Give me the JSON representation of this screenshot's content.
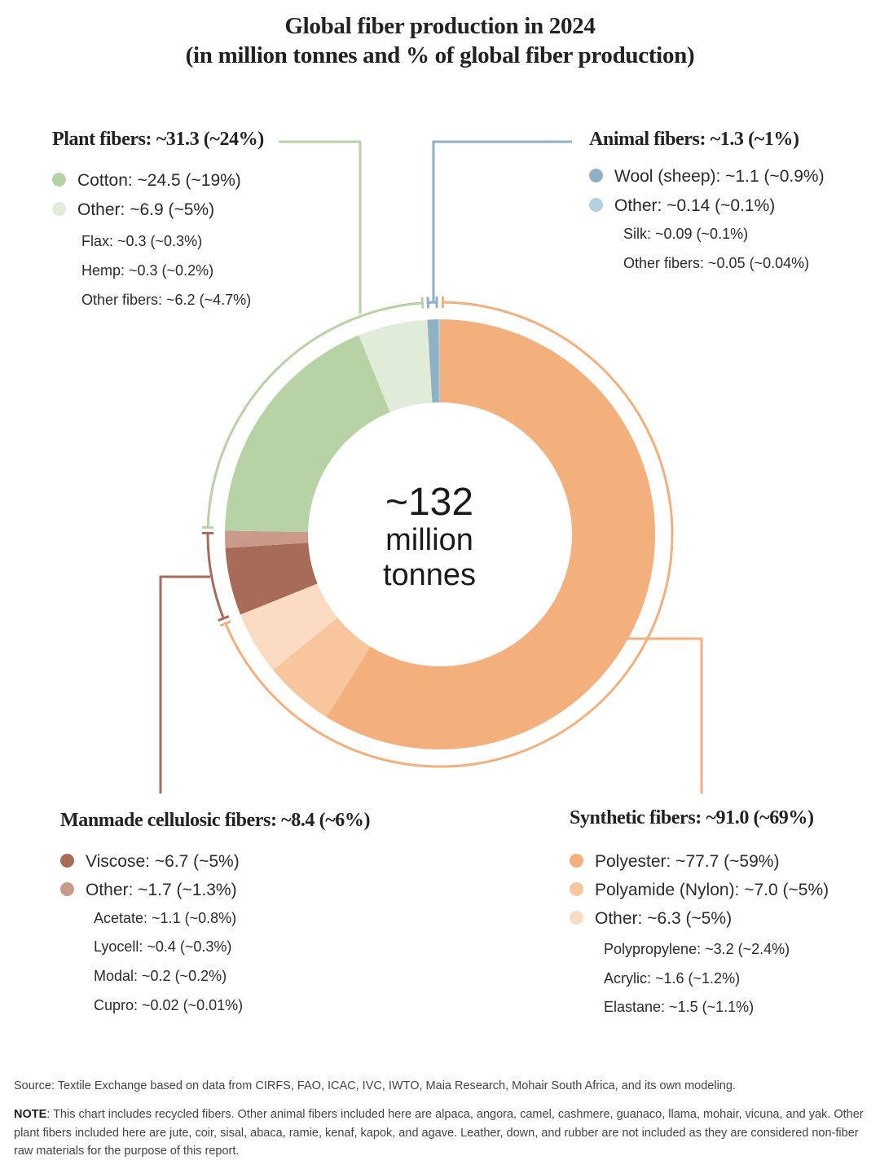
{
  "title": {
    "line1": "Global fiber production in 2024",
    "line2": "(in million tonnes and % of global fiber production)"
  },
  "center": {
    "value": "~132",
    "unit_line1": "million",
    "unit_line2": "tonnes"
  },
  "groups": {
    "plant": {
      "title": "Plant fibers: ~31.3 (~24%)",
      "color": "#b7d3a5",
      "items": [
        {
          "label": "Cotton: ~24.5 (~19%)",
          "color": "#b7d3a5"
        },
        {
          "label": "Other: ~6.9 (~5%)",
          "color": "#e1ecd8"
        }
      ],
      "subitems": [
        "Flax:  ~0.3 (~0.3%)",
        "Hemp: ~0.3 (~0.2%)",
        "Other fibers: ~6.2 (~4.7%)"
      ]
    },
    "animal": {
      "title": "Animal fibers: ~1.3 (~1%)",
      "color": "#8fb1c4",
      "items": [
        {
          "label": "Wool (sheep): ~1.1 (~0.9%)",
          "color": "#8fb1c4"
        },
        {
          "label": "Other: ~0.14 (~0.1%)",
          "color": "#b4d0dc"
        }
      ],
      "subitems": [
        "Silk: ~0.09 (~0.1%)",
        "Other fibers: ~0.05 (~0.04%)"
      ]
    },
    "cellulosic": {
      "title": "Manmade cellulosic fibers: ~8.4 (~6%)",
      "color": "#a86b58",
      "items": [
        {
          "label": "Viscose: ~6.7 (~5%)",
          "color": "#a86b58"
        },
        {
          "label": "Other: ~1.7 (~1.3%)",
          "color": "#c99a8a"
        }
      ],
      "subitems": [
        "Acetate: ~1.1 (~0.8%)",
        "Lyocell: ~0.4 (~0.3%)",
        "Modal: ~0.2 (~0.2%)",
        "Cupro: ~0.02 (~0.01%)"
      ]
    },
    "synthetic": {
      "title": "Synthetic fibers: ~91.0 (~69%)",
      "color": "#f4b07c",
      "items": [
        {
          "label": "Polyester: ~77.7 (~59%)",
          "color": "#f4b07c"
        },
        {
          "label": "Polyamide (Nylon): ~7.0 (~5%)",
          "color": "#f8c69d"
        },
        {
          "label": "Other: ~6.3 (~5%)",
          "color": "#fbdcc2"
        }
      ],
      "subitems": [
        "Polypropylene: ~3.2 (~2.4%)",
        "Acrylic: ~1.6 (~1.2%)",
        "Elastane: ~1.5 (~1.1%)"
      ]
    }
  },
  "chart_data": {
    "type": "pie",
    "variant": "donut",
    "title": "Global fiber production in 2024 (in million tonnes and % of global fiber production)",
    "total": 132,
    "unit": "million tonnes",
    "start": "12 o'clock",
    "direction": "clockwise",
    "slices": [
      {
        "name": "Polyester",
        "group": "Synthetic fibers",
        "value": 77.7,
        "color": "#f4b07c"
      },
      {
        "name": "Polyamide (Nylon)",
        "group": "Synthetic fibers",
        "value": 7.0,
        "color": "#f8c69d"
      },
      {
        "name": "Other synthetic",
        "group": "Synthetic fibers",
        "value": 6.3,
        "color": "#fbdcc2"
      },
      {
        "name": "Viscose",
        "group": "Manmade cellulosic fibers",
        "value": 6.7,
        "color": "#a86b58"
      },
      {
        "name": "Other cellulosic",
        "group": "Manmade cellulosic fibers",
        "value": 1.7,
        "color": "#c99a8a"
      },
      {
        "name": "Cotton",
        "group": "Plant fibers",
        "value": 24.5,
        "color": "#b7d3a5"
      },
      {
        "name": "Other plant",
        "group": "Plant fibers",
        "value": 6.9,
        "color": "#e1ecd8"
      },
      {
        "name": "Wool (sheep)",
        "group": "Animal fibers",
        "value": 1.1,
        "color": "#8fb1c4"
      },
      {
        "name": "Other animal",
        "group": "Animal fibers",
        "value": 0.14,
        "color": "#b4d0dc"
      }
    ],
    "groups": [
      {
        "name": "Synthetic fibers",
        "value": 91.0,
        "share": "~69%",
        "color": "#f4b07c"
      },
      {
        "name": "Manmade cellulosic fibers",
        "value": 8.4,
        "share": "~6%",
        "color": "#a86b58"
      },
      {
        "name": "Plant fibers",
        "value": 31.3,
        "share": "~24%",
        "color": "#b7d3a5"
      },
      {
        "name": "Animal fibers",
        "value": 1.3,
        "share": "~1%",
        "color": "#8fb1c4"
      }
    ]
  },
  "footer": {
    "source": "Source: Textile Exchange based on data from CIRFS, FAO, ICAC, IVC, IWTO, Maia Research, Mohair South Africa, and its own modeling.",
    "note_label": "NOTE",
    "note_text": ": This chart includes recycled fibers. Other animal fibers included here are alpaca, angora, camel, cashmere, guanaco, llama, mohair, vicuna, and yak. Other plant fibers included here are jute, coir, sisal, abaca, ramie, kenaf, kapok, and agave. Leather, down, and rubber are not included as they are considered non-fiber raw materials for the purpose of this report."
  }
}
